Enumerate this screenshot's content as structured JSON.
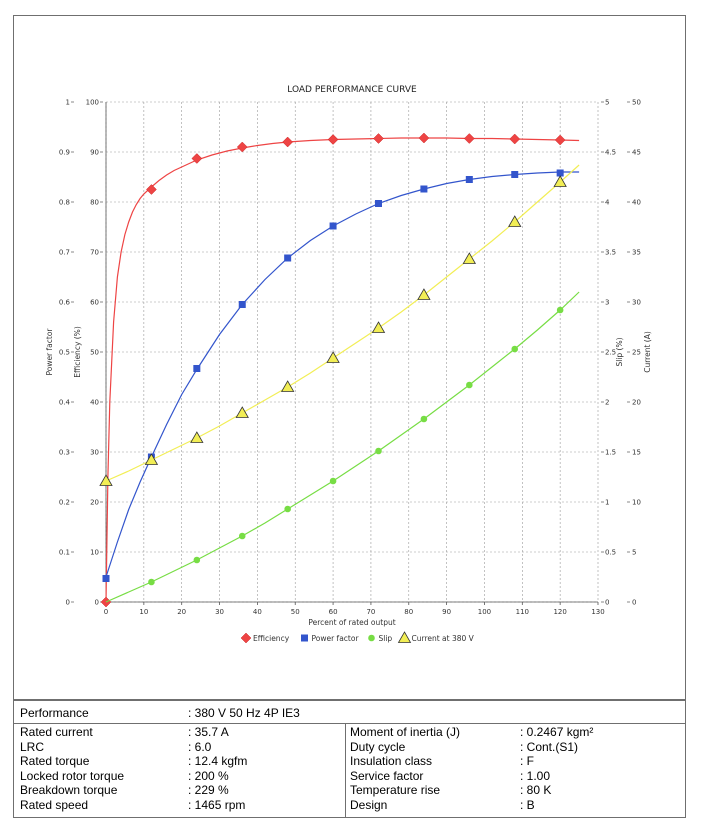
{
  "chart_data": {
    "type": "line",
    "title": "LOAD PERFORMANCE CURVE",
    "xlabel": "Percent of rated output",
    "xlim": [
      0,
      130
    ],
    "x_ticks": [
      0,
      10,
      20,
      30,
      40,
      50,
      60,
      70,
      80,
      90,
      100,
      110,
      120,
      130
    ],
    "axes": {
      "power_factor": {
        "label": "Power factor",
        "range": [
          0,
          1
        ],
        "ticks": [
          "0",
          "0.1",
          "0.2",
          "0.3",
          "0.4",
          "0.5",
          "0.6",
          "0.7",
          "0.8",
          "0.9",
          "1"
        ]
      },
      "efficiency": {
        "label": "Efficiency (%)",
        "range": [
          0,
          100
        ],
        "ticks": [
          "0",
          "10",
          "20",
          "30",
          "40",
          "50",
          "60",
          "70",
          "80",
          "90",
          "100"
        ]
      },
      "slip": {
        "label": "Slip (%)",
        "range": [
          0,
          5
        ],
        "ticks": [
          "0",
          "0.5",
          "1",
          "1.5",
          "2",
          "2.5",
          "3",
          "3.5",
          "4",
          "4.5",
          "5"
        ]
      },
      "current": {
        "label": "Current (A)",
        "range": [
          0,
          50
        ],
        "ticks": [
          "0",
          "5",
          "10",
          "15",
          "20",
          "25",
          "30",
          "35",
          "40",
          "45",
          "50"
        ]
      }
    },
    "grid": true,
    "legend_position": "bottom",
    "series": [
      {
        "name": "Efficiency",
        "axis": "efficiency",
        "color": "#ee4444",
        "marker": "diamond",
        "x": [
          0,
          12,
          24,
          36,
          48,
          60,
          72,
          84,
          96,
          108,
          120
        ],
        "y": [
          0,
          82.5,
          88.7,
          91.0,
          92.0,
          92.5,
          92.7,
          92.8,
          92.7,
          92.6,
          92.4
        ],
        "curve_x": [
          0,
          0.5,
          1,
          2,
          3,
          4,
          5,
          6,
          7,
          8,
          9,
          10,
          12,
          14,
          16,
          18,
          20,
          24,
          28,
          32,
          36,
          40,
          44,
          48,
          54,
          60,
          66,
          72,
          78,
          84,
          90,
          96,
          102,
          108,
          114,
          120,
          125
        ],
        "curve_y": [
          0,
          25,
          40,
          56,
          65,
          70,
          73.5,
          76,
          78,
          79.5,
          80.7,
          81.6,
          83,
          84.3,
          85.4,
          86.3,
          87.0,
          88.4,
          89.4,
          90.2,
          90.8,
          91.3,
          91.7,
          92.0,
          92.3,
          92.5,
          92.6,
          92.7,
          92.8,
          92.8,
          92.8,
          92.7,
          92.7,
          92.6,
          92.5,
          92.4,
          92.3
        ]
      },
      {
        "name": "Power factor",
        "axis": "power_factor",
        "color": "#3355cc",
        "marker": "square",
        "x": [
          0,
          12,
          24,
          36,
          48,
          60,
          72,
          84,
          96,
          108,
          120
        ],
        "y": [
          0.047,
          0.29,
          0.467,
          0.595,
          0.688,
          0.752,
          0.797,
          0.826,
          0.845,
          0.855,
          0.858
        ],
        "curve_x": [
          0,
          3,
          6,
          9,
          12,
          16,
          20,
          24,
          30,
          36,
          42,
          48,
          54,
          60,
          66,
          72,
          78,
          84,
          90,
          96,
          102,
          108,
          114,
          120,
          125
        ],
        "curve_y": [
          0.05,
          0.12,
          0.185,
          0.24,
          0.29,
          0.355,
          0.415,
          0.465,
          0.535,
          0.595,
          0.645,
          0.688,
          0.723,
          0.752,
          0.776,
          0.797,
          0.813,
          0.826,
          0.837,
          0.845,
          0.851,
          0.855,
          0.858,
          0.86,
          0.86
        ]
      },
      {
        "name": "Slip",
        "axis": "slip",
        "color": "#77dd44",
        "marker": "circle",
        "x": [
          12,
          24,
          36,
          48,
          60,
          72,
          84,
          96,
          108,
          120
        ],
        "y": [
          0.2,
          0.42,
          0.66,
          0.93,
          1.21,
          1.51,
          1.83,
          2.17,
          2.53,
          2.92
        ],
        "curve_x": [
          0,
          6,
          12,
          18,
          24,
          30,
          36,
          42,
          48,
          54,
          60,
          66,
          72,
          78,
          84,
          90,
          96,
          102,
          108,
          114,
          120,
          125
        ],
        "curve_y": [
          0,
          0.1,
          0.2,
          0.31,
          0.42,
          0.54,
          0.66,
          0.79,
          0.93,
          1.07,
          1.21,
          1.36,
          1.51,
          1.67,
          1.83,
          2.0,
          2.17,
          2.35,
          2.53,
          2.72,
          2.92,
          3.1
        ]
      },
      {
        "name": "Current at 380 V",
        "axis": "current",
        "color": "#f2ee55",
        "marker": "triangle",
        "x": [
          0,
          12,
          24,
          36,
          48,
          60,
          72,
          84,
          96,
          108,
          120
        ],
        "y": [
          12.1,
          14.2,
          16.4,
          18.9,
          21.5,
          24.4,
          27.4,
          30.7,
          34.3,
          38.0,
          42.0
        ],
        "curve_x": [
          0,
          6,
          12,
          18,
          24,
          30,
          36,
          42,
          48,
          54,
          60,
          66,
          72,
          78,
          84,
          90,
          96,
          102,
          108,
          114,
          120,
          125
        ],
        "curve_y": [
          12.1,
          13.1,
          14.2,
          15.3,
          16.4,
          17.6,
          18.9,
          20.2,
          21.5,
          22.9,
          24.4,
          25.9,
          27.4,
          29.0,
          30.7,
          32.5,
          34.3,
          36.1,
          38.0,
          40.0,
          42.0,
          43.7
        ]
      }
    ]
  },
  "specs": {
    "performance_label": "Performance",
    "performance_value": ": 380 V 50 Hz 4P IE3",
    "left": [
      {
        "label": "Rated current",
        "value": ": 35.7 A"
      },
      {
        "label": "LRC",
        "value": ": 6.0"
      },
      {
        "label": "Rated torque",
        "value": ": 12.4 kgfm"
      },
      {
        "label": "Locked rotor torque",
        "value": ": 200 %"
      },
      {
        "label": "Breakdown torque",
        "value": ": 229 %"
      },
      {
        "label": "Rated speed",
        "value": ": 1465 rpm"
      }
    ],
    "right": [
      {
        "label": "Moment of inertia (J)",
        "value": ": 0.2467 kgm²"
      },
      {
        "label": "Duty cycle",
        "value": ": Cont.(S1)"
      },
      {
        "label": "Insulation class",
        "value": ": F"
      },
      {
        "label": "Service factor",
        "value": ": 1.00"
      },
      {
        "label": "Temperature rise",
        "value": ": 80 K"
      },
      {
        "label": "Design",
        "value": ": B"
      }
    ]
  }
}
